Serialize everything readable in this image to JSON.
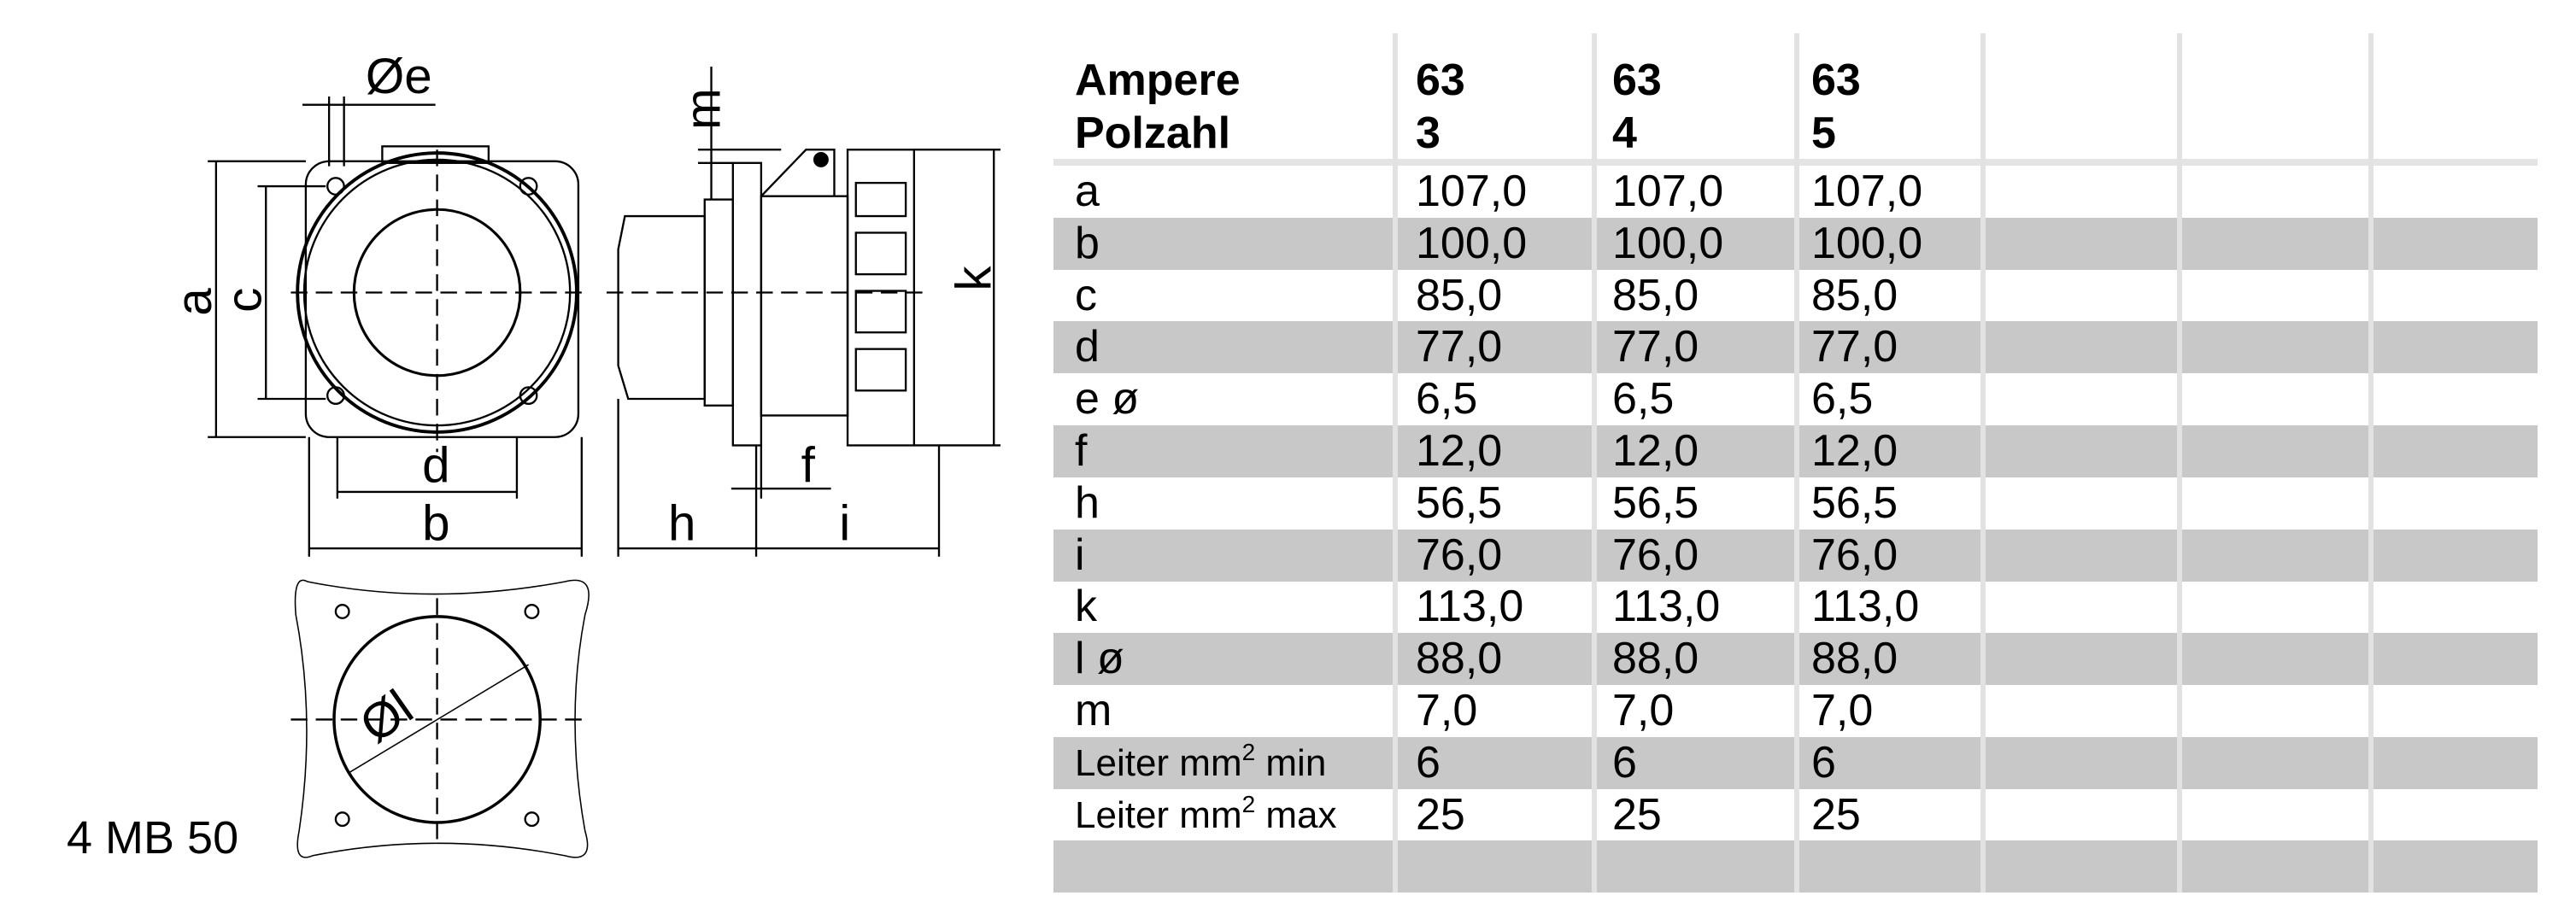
{
  "drawing": {
    "labels": {
      "e": "Øe",
      "a": "a",
      "c": "c",
      "d": "d",
      "b": "b",
      "m": "m",
      "k": "k",
      "h": "h",
      "f": "f",
      "i": "i",
      "l": "Øl"
    },
    "model": "4 MB 50"
  },
  "table": {
    "header": {
      "ampere_label": "Ampere",
      "polzahl_label": "Polzahl",
      "columns": [
        {
          "ampere": "63",
          "polzahl": "3"
        },
        {
          "ampere": "63",
          "polzahl": "4"
        },
        {
          "ampere": "63",
          "polzahl": "5"
        }
      ]
    },
    "rows": [
      {
        "label": "a",
        "values": [
          "107,0",
          "107,0",
          "107,0"
        ]
      },
      {
        "label": "b",
        "values": [
          "100,0",
          "100,0",
          "100,0"
        ]
      },
      {
        "label": "c",
        "values": [
          "85,0",
          "85,0",
          "85,0"
        ]
      },
      {
        "label": "d",
        "values": [
          "77,0",
          "77,0",
          "77,0"
        ]
      },
      {
        "label": "e ø",
        "values": [
          "6,5",
          "6,5",
          "6,5"
        ]
      },
      {
        "label": "f",
        "values": [
          "12,0",
          "12,0",
          "12,0"
        ]
      },
      {
        "label": "h",
        "values": [
          "56,5",
          "56,5",
          "56,5"
        ]
      },
      {
        "label": "i",
        "values": [
          "76,0",
          "76,0",
          "76,0"
        ]
      },
      {
        "label": "k",
        "values": [
          "113,0",
          "113,0",
          "113,0"
        ]
      },
      {
        "label": "l ø",
        "values": [
          "88,0",
          "88,0",
          "88,0"
        ]
      },
      {
        "label": "m",
        "values": [
          "7,0",
          "7,0",
          "7,0"
        ]
      },
      {
        "label": "Leiter mm",
        "sup": "2",
        "suffix": " min",
        "values": [
          "6",
          "6",
          "6"
        ]
      },
      {
        "label": "Leiter mm",
        "sup": "2",
        "suffix": " max",
        "values": [
          "25",
          "25",
          "25"
        ]
      },
      {
        "label": "",
        "values": [
          "",
          "",
          ""
        ]
      }
    ],
    "shade_color": "#c8c8c8",
    "grid_color": "#e2e2e2"
  }
}
